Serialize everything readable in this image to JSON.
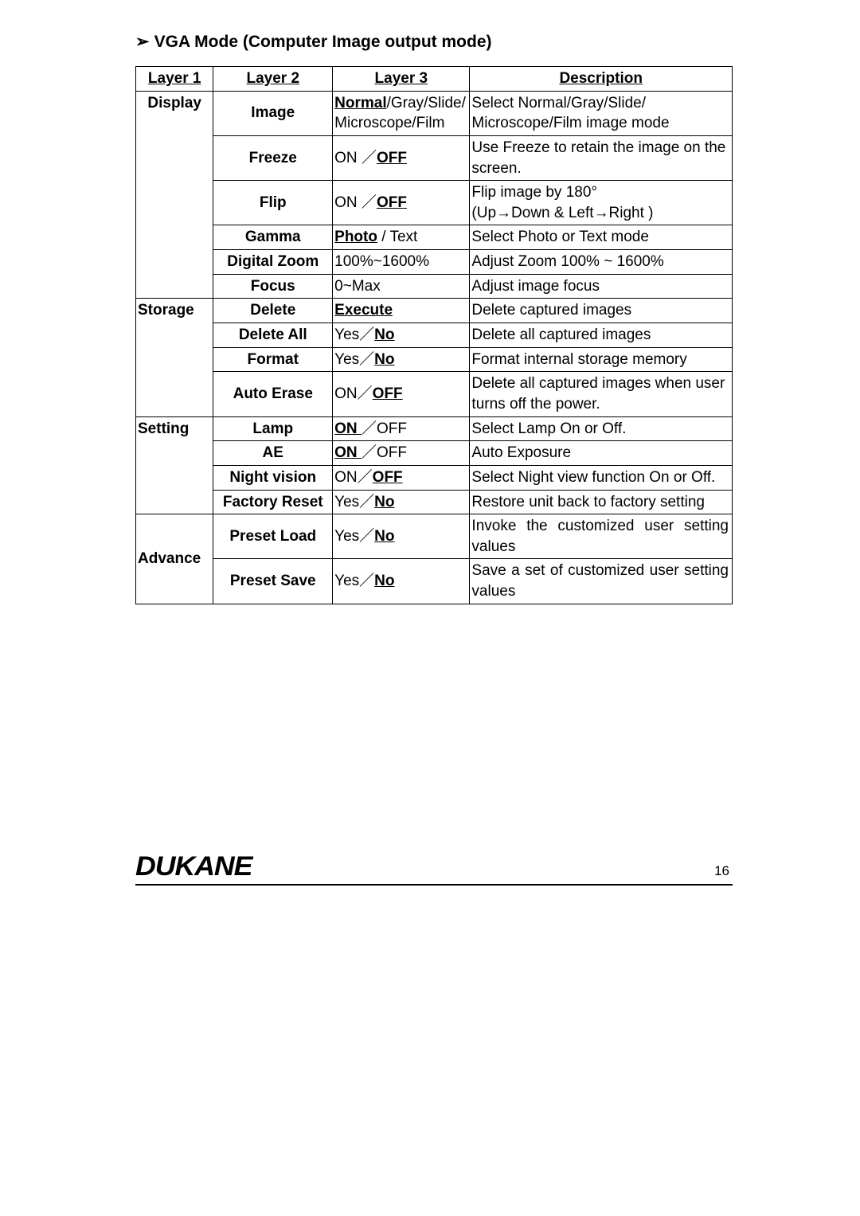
{
  "heading_arrow": "➢",
  "heading": "VGA Mode (Computer Image output mode)",
  "headers": {
    "h1": "Layer 1",
    "h2": "Layer 2",
    "h3": "Layer 3",
    "h4": "Description"
  },
  "rows": {
    "display": {
      "l1": "Display",
      "image": {
        "l2": "Image",
        "l3_bold": "Normal",
        "l3_rest": "/Gray/Slide/ Microscope/Film",
        "desc": "Select Normal/Gray/Slide/ Microscope/Film image mode"
      },
      "freeze": {
        "l2": "Freeze",
        "l3_pre": "ON ／",
        "l3_def": "OFF",
        "desc": "Use Freeze to retain the image on the screen."
      },
      "flip": {
        "l2": "Flip",
        "l3_pre": "ON ／",
        "l3_def": "OFF",
        "desc1": "Flip image by 180°",
        "desc2": "(Up→Down & Left→Right )"
      },
      "gamma": {
        "l2": "Gamma",
        "l3_def": "Photo",
        "l3_rest": " / Text",
        "desc": "Select Photo or Text mode"
      },
      "zoom": {
        "l2": "Digital Zoom",
        "l3": "100%~1600%",
        "desc": "Adjust Zoom 100% ~ 1600%"
      },
      "focus": {
        "l2": "Focus",
        "l3": "0~Max",
        "desc": "Adjust image focus"
      }
    },
    "storage": {
      "l1": "Storage",
      "delete": {
        "l2": "Delete",
        "l3_def": "Execute",
        "desc": "Delete captured images"
      },
      "deleteall": {
        "l2": "Delete All",
        "l3_pre": "Yes／",
        "l3_def": "No",
        "desc": "Delete all captured images"
      },
      "format": {
        "l2": "Format",
        "l3_pre": "Yes／",
        "l3_def": "No",
        "desc": "Format internal storage memory"
      },
      "autoerase": {
        "l2": "Auto Erase",
        "l3_pre": "ON／",
        "l3_def": "OFF",
        "desc": "Delete all captured images when user turns off the power."
      }
    },
    "setting": {
      "l1": "Setting",
      "lamp": {
        "l2": "Lamp",
        "l3_def": "ON ",
        "l3_rest": "／OFF",
        "desc": "Select Lamp On or Off."
      },
      "ae": {
        "l2": "AE",
        "l3_def": "ON ",
        "l3_rest": "／OFF",
        "desc": "Auto Exposure"
      },
      "night": {
        "l2": "Night vision",
        "l3_pre": "ON／",
        "l3_def": "OFF",
        "desc": "Select Night view function On or Off."
      },
      "factory": {
        "l2": "Factory Reset",
        "l3_pre": "Yes／",
        "l3_def": "No",
        "desc": "Restore unit back to factory setting"
      }
    },
    "advance": {
      "l1": "Advance",
      "pload": {
        "l2": "Preset Load",
        "l3_pre": "Yes／",
        "l3_def": "No",
        "desc": "Invoke the customized user setting values"
      },
      "psave": {
        "l2": "Preset Save",
        "l3_pre": "Yes／",
        "l3_def": "No",
        "desc": "Save a set of customized user setting values"
      }
    }
  },
  "footer": {
    "logo": "DUKANE",
    "page": "16"
  }
}
